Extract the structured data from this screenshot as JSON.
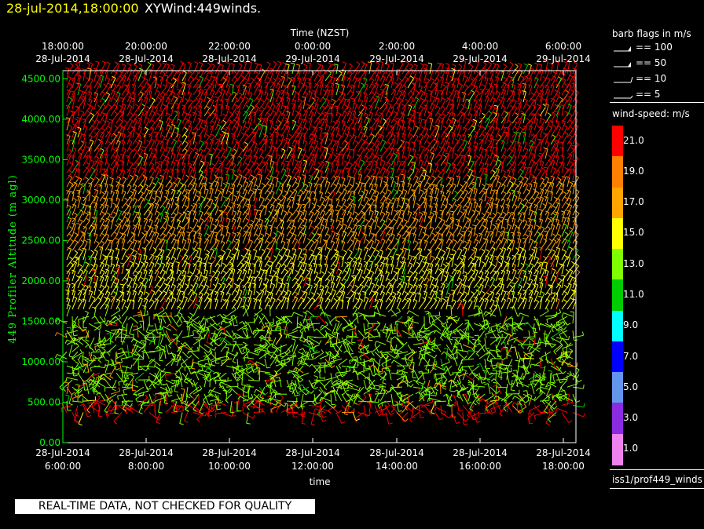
{
  "header": {
    "date": "28-jul-2014,18:00:00",
    "title": "XYWind:449winds."
  },
  "notice": "REAL-TIME DATA, NOT CHECKED FOR QUALITY",
  "legend": {
    "barb_title": "barb flags in m/s",
    "barb_entries": [
      {
        "label": "== 100",
        "kind": "pennant"
      },
      {
        "label": "== 50",
        "kind": "flag"
      },
      {
        "label": "== 10",
        "kind": "full"
      },
      {
        "label": "== 5",
        "kind": "half"
      }
    ],
    "speed_title": "wind-speed: m/s",
    "colorbar": [
      {
        "label": "21.0",
        "color": "#ff0000"
      },
      {
        "label": "19.0",
        "color": "#ff8000"
      },
      {
        "label": "17.0",
        "color": "#ffa500"
      },
      {
        "label": "15.0",
        "color": "#ffff00"
      },
      {
        "label": "13.0",
        "color": "#80ff00"
      },
      {
        "label": "11.0",
        "color": "#00cc00"
      },
      {
        "label": "9.0",
        "color": "#00ffff"
      },
      {
        "label": "7.0",
        "color": "#0000ff"
      },
      {
        "label": "5.0",
        "color": "#6495ed"
      },
      {
        "label": "3.0",
        "color": "#8a2be2"
      },
      {
        "label": "1.0",
        "color": "#ee82ee"
      }
    ],
    "source": "iss1/prof449_winds"
  },
  "chart_data": {
    "type": "wind-barb time-height plot",
    "top_axis_title": "Time (NZST)",
    "top_ticks": [
      [
        "18:00:00",
        "28-Jul-2014"
      ],
      [
        "20:00:00",
        "28-Jul-2014"
      ],
      [
        "22:00:00",
        "28-Jul-2014"
      ],
      [
        "0:00:00",
        "29-Jul-2014"
      ],
      [
        "2:00:00",
        "29-Jul-2014"
      ],
      [
        "4:00:00",
        "29-Jul-2014"
      ],
      [
        "6:00:00",
        "29-Jul-2014"
      ]
    ],
    "bottom_ticks": [
      [
        "28-Jul-2014",
        "6:00:00"
      ],
      [
        "28-Jul-2014",
        "8:00:00"
      ],
      [
        "28-Jul-2014",
        "10:00:00"
      ],
      [
        "28-Jul-2014",
        "12:00:00"
      ],
      [
        "28-Jul-2014",
        "14:00:00"
      ],
      [
        "28-Jul-2014",
        "16:00:00"
      ],
      [
        "28-Jul-2014",
        "18:00:00"
      ]
    ],
    "xlabel": "time",
    "ylabel": "449 Profiler Altitude (m agl)",
    "ylim": [
      0,
      4600
    ],
    "y_ticks": [
      "0.00",
      "500.00",
      "1000.00",
      "1500.00",
      "2000.00",
      "2500.00",
      "3000.00",
      "3500.00",
      "4000.00",
      "4500.00"
    ],
    "speed_bands": [
      {
        "alt_min": 300,
        "alt_max": 500,
        "dominant_color": "#ff0000"
      },
      {
        "alt_min": 500,
        "alt_max": 1600,
        "dominant_color": "#80ff00"
      },
      {
        "alt_min": 1600,
        "alt_max": 2300,
        "dominant_color": "#ffff00"
      },
      {
        "alt_min": 2300,
        "alt_max": 3200,
        "dominant_color": "#ffa500"
      },
      {
        "alt_min": 3200,
        "alt_max": 4600,
        "dominant_color": "#ff0000"
      }
    ]
  }
}
